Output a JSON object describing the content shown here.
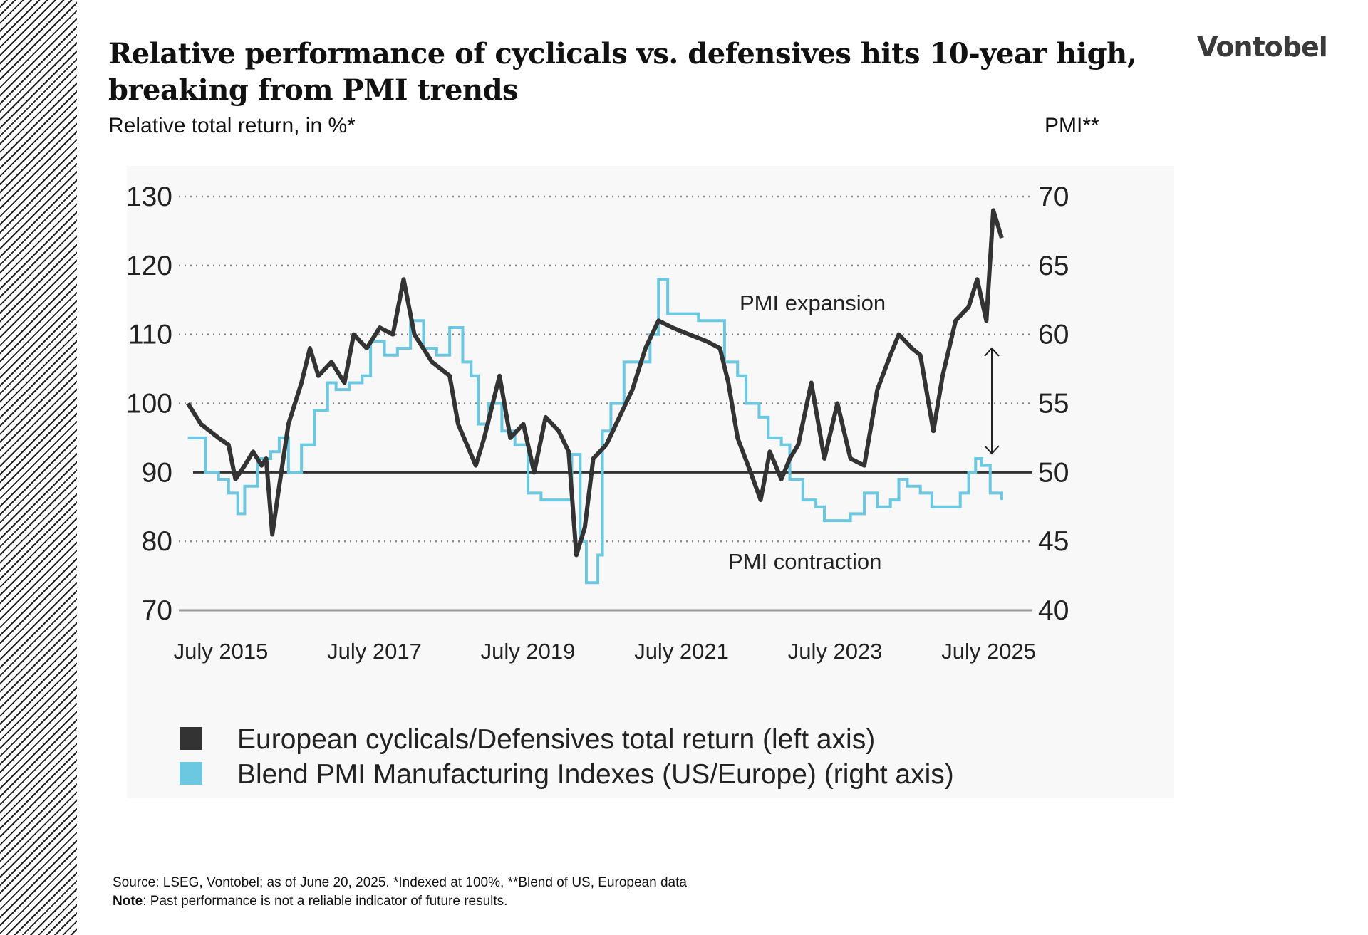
{
  "header": {
    "title_line1": "Relative performance of cyclicals vs. defensives hits 10-year high,",
    "title_line2": "breaking from PMI trends",
    "logo": "Vontobel",
    "subtitle": "Relative total return, in %*",
    "right_axis_title": "PMI**"
  },
  "footer": {
    "source": "Source: LSEG, Vontobel; as of June 20, 2025. *Indexed at 100%, **Blend of US, European data",
    "note_label": "Note",
    "note_text": ": Past performance is not a reliable indicator of future results."
  },
  "chart_data": {
    "type": "line",
    "title": "Relative performance of cyclicals vs. defensives hits 10-year high, breaking from PMI trends",
    "ylabel": "Relative total return, in %*",
    "y2label": "PMI**",
    "ylim": [
      70,
      130
    ],
    "y2lim": [
      40,
      70
    ],
    "yticks": [
      "130",
      "120",
      "110",
      "100",
      "90",
      "80",
      "70"
    ],
    "y2ticks": [
      "70",
      "65",
      "60",
      "55",
      "50",
      "45",
      "40"
    ],
    "xticks": [
      {
        "label": "July 2015",
        "x": 2015.5
      },
      {
        "label": "July 2017",
        "x": 2017.5
      },
      {
        "label": "July 2019",
        "x": 2019.5
      },
      {
        "label": "July 2021",
        "x": 2021.5
      },
      {
        "label": "July 2023",
        "x": 2023.5
      },
      {
        "label": "July 2025",
        "x": 2025.5
      }
    ],
    "grid": "horizontal dotted",
    "annotations": [
      "PMI expansion",
      "PMI contraction"
    ],
    "colors": {
      "cyclicals": "#333333",
      "pmi": "#6cc8e0"
    },
    "legend_position": "bottom-left",
    "series": [
      {
        "name": "European cyclicals / Defensives total return (left axis)",
        "axis": "left",
        "x": [
          2015.07,
          2015.24,
          2015.47,
          2015.6,
          2015.69,
          2015.81,
          2015.92,
          2016.03,
          2016.09,
          2016.17,
          2016.26,
          2016.38,
          2016.55,
          2016.66,
          2016.77,
          2016.94,
          2017.11,
          2017.23,
          2017.4,
          2017.57,
          2017.74,
          2017.88,
          2018.02,
          2018.25,
          2018.48,
          2018.59,
          2018.82,
          2018.93,
          2019.13,
          2019.27,
          2019.44,
          2019.58,
          2019.73,
          2019.9,
          2020.03,
          2020.13,
          2020.24,
          2020.35,
          2020.52,
          2020.69,
          2020.86,
          2021.03,
          2021.2,
          2021.38,
          2021.6,
          2021.83,
          2022.0,
          2022.11,
          2022.23,
          2022.4,
          2022.53,
          2022.65,
          2022.8,
          2022.91,
          2023.02,
          2023.19,
          2023.36,
          2023.53,
          2023.7,
          2023.88,
          2024.05,
          2024.22,
          2024.33,
          2024.5,
          2024.61,
          2024.78,
          2024.9,
          2025.07,
          2025.24,
          2025.35,
          2025.47,
          2025.56,
          2025.67
        ],
        "y": [
          100,
          97,
          95,
          94,
          89,
          91,
          93,
          91,
          92,
          81,
          88,
          97,
          103,
          108,
          104,
          106,
          103,
          110,
          108,
          111,
          110,
          118,
          110,
          106,
          104,
          97,
          91,
          95,
          104,
          95,
          97,
          90,
          98,
          96,
          93,
          78,
          82,
          92,
          94,
          98,
          102,
          108,
          112,
          111,
          110,
          109,
          108,
          103,
          95,
          90,
          86,
          93,
          89,
          92,
          94,
          103,
          92,
          100,
          92,
          91,
          102,
          107,
          110,
          108,
          107,
          96,
          104,
          112,
          114,
          118,
          112,
          128,
          124
        ]
      },
      {
        "name": "Blend PMI Manufacturing Indexes (US / Europe) (right axis)",
        "axis": "right",
        "x": [
          2015.07,
          2015.24,
          2015.3,
          2015.47,
          2015.6,
          2015.72,
          2015.81,
          2015.98,
          2016.15,
          2016.26,
          2016.38,
          2016.55,
          2016.72,
          2016.89,
          2017.0,
          2017.17,
          2017.34,
          2017.45,
          2017.63,
          2017.8,
          2017.97,
          2018.14,
          2018.31,
          2018.48,
          2018.65,
          2018.76,
          2018.85,
          2018.99,
          2019.16,
          2019.33,
          2019.5,
          2019.67,
          2019.9,
          2020.07,
          2020.18,
          2020.26,
          2020.41,
          2020.47,
          2020.58,
          2020.75,
          2020.92,
          2021.09,
          2021.2,
          2021.32,
          2021.49,
          2021.72,
          2022.0,
          2022.06,
          2022.23,
          2022.34,
          2022.51,
          2022.63,
          2022.8,
          2022.91,
          2023.08,
          2023.25,
          2023.36,
          2023.53,
          2023.7,
          2023.88,
          2024.05,
          2024.22,
          2024.33,
          2024.44,
          2024.61,
          2024.76,
          2024.95,
          2025.13,
          2025.24,
          2025.33,
          2025.41,
          2025.52,
          2025.67
        ],
        "y": [
          52.5,
          52.5,
          50,
          49.5,
          48.5,
          47,
          49,
          51,
          51.5,
          52.5,
          50,
          52,
          54.5,
          56.5,
          56,
          56.5,
          57,
          59.5,
          58.5,
          59,
          61,
          59,
          58.5,
          60.5,
          58,
          57,
          53.5,
          55,
          53,
          52,
          48.5,
          48,
          48,
          51.3,
          45,
          42,
          44,
          53,
          55,
          58,
          58,
          60,
          64,
          61.5,
          61.5,
          61,
          61,
          58,
          57,
          55,
          54,
          52.5,
          52,
          49.5,
          48,
          47.5,
          46.5,
          46.5,
          47,
          48.5,
          47.5,
          48,
          49.5,
          49,
          48.5,
          47.5,
          47.5,
          48.5,
          50,
          51,
          50.5,
          48.5,
          48
        ]
      }
    ]
  }
}
